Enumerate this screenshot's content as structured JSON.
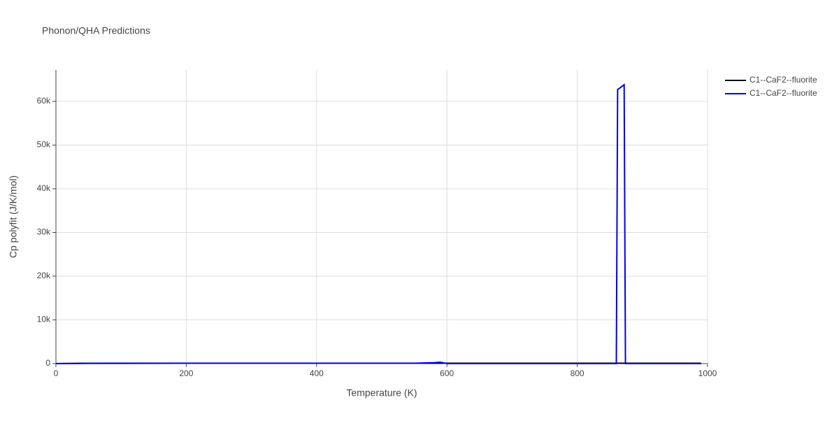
{
  "chart_data": {
    "type": "line",
    "title": "Phonon/QHA Predictions",
    "x_label": "Temperature (K)",
    "y_label": "Cp polyfit (J/K/mol)",
    "xlim": [
      0,
      1000
    ],
    "xticks": [
      0,
      200,
      400,
      600,
      800,
      1000
    ],
    "ylim": [
      0,
      67200
    ],
    "yticks": [
      0,
      {
        "value": 10000,
        "label": "10k"
      },
      {
        "value": 20000,
        "label": "20k"
      },
      {
        "value": 30000,
        "label": "30k"
      },
      {
        "value": 40000,
        "label": "40k"
      },
      {
        "value": 50000,
        "label": "50k"
      },
      {
        "value": 60000,
        "label": "60k"
      }
    ],
    "grid": true,
    "legend": "top-right",
    "series": [
      {
        "name": "C1--CaF2--fluorite",
        "color": "#000000",
        "x": [
          0,
          50,
          100,
          200,
          300,
          400,
          500,
          600,
          700,
          800,
          900,
          990
        ],
        "values": [
          0,
          55,
          66,
          71,
          73,
          74,
          75,
          76,
          77,
          78,
          79,
          80
        ]
      },
      {
        "name": "C1--CaF2--fluorite",
        "color": "#0000ee",
        "x": [
          0,
          50,
          100,
          200,
          300,
          400,
          500,
          550,
          580,
          590,
          600,
          700,
          800,
          860,
          862,
          872,
          874,
          900,
          990
        ],
        "values": [
          0,
          60,
          70,
          72,
          73,
          74,
          76,
          80,
          200,
          300,
          0,
          0,
          0,
          0,
          62700,
          63800,
          0,
          0,
          0
        ]
      }
    ]
  }
}
